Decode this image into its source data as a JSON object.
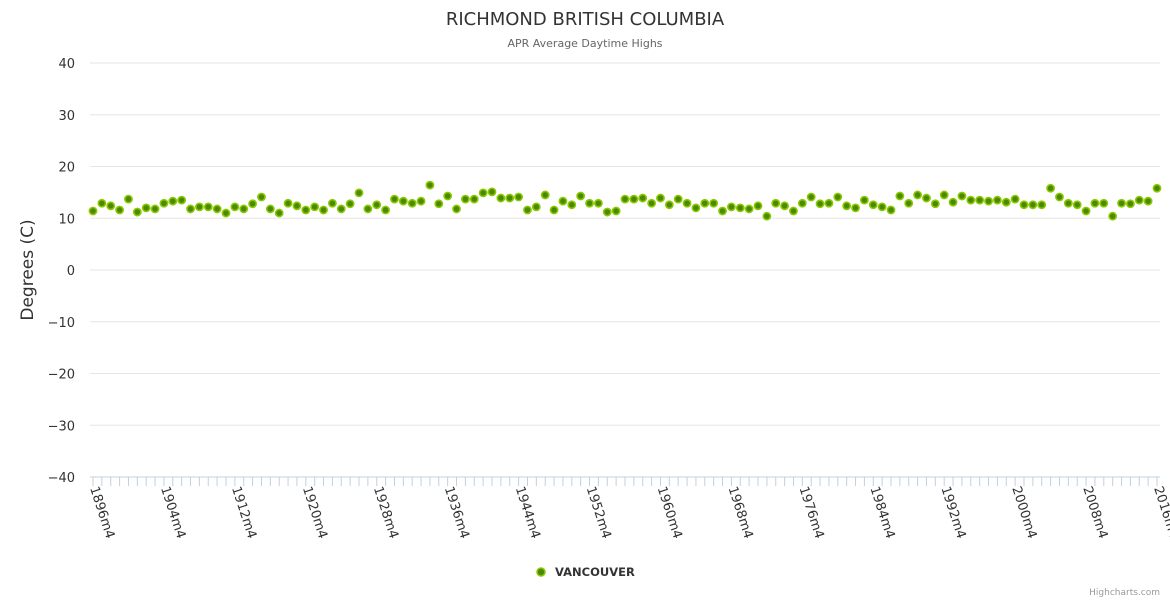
{
  "chart_data": {
    "type": "scatter",
    "title": "RICHMOND BRITISH COLUMBIA",
    "subtitle": "APR Average Daytime Highs",
    "ylabel": "Degrees (C)",
    "xlabel": "",
    "ylim": [
      -40,
      40
    ],
    "yticks": [
      40,
      30,
      20,
      10,
      0,
      -10,
      -20,
      -30,
      -40
    ],
    "xlim": [
      1896,
      2016
    ],
    "xtick_labels": [
      "1896m4",
      "1904m4",
      "1912m4",
      "1920m4",
      "1928m4",
      "1936m4",
      "1944m4",
      "1952m4",
      "1960m4",
      "1968m4",
      "1976m4",
      "1984m4",
      "1992m4",
      "2000m4",
      "2008m4",
      "2016m4"
    ],
    "grid": true,
    "legend_placement": "bottom-center",
    "series": [
      {
        "name": "VANCOUVER",
        "color": "#6aa800",
        "x_start": 1896,
        "values": [
          11.4,
          12.9,
          12.4,
          11.6,
          13.7,
          11.2,
          12.0,
          11.8,
          12.9,
          13.3,
          13.5,
          11.8,
          12.2,
          12.2,
          11.8,
          11.0,
          12.2,
          11.8,
          12.8,
          14.1,
          11.8,
          11.0,
          12.9,
          12.4,
          11.6,
          12.2,
          11.6,
          12.9,
          11.8,
          12.8,
          14.9,
          11.8,
          12.6,
          11.6,
          13.7,
          13.3,
          12.9,
          13.3,
          16.4,
          12.8,
          14.3,
          11.8,
          13.7,
          13.7,
          14.9,
          15.1,
          13.9,
          13.9,
          14.1,
          11.6,
          12.2,
          14.5,
          11.6,
          13.3,
          12.6,
          14.3,
          12.9,
          12.9,
          11.2,
          11.4,
          13.7,
          13.7,
          13.9,
          12.9,
          13.9,
          12.6,
          13.7,
          12.9,
          12.0,
          12.9,
          12.9,
          11.4,
          12.2,
          12.0,
          11.8,
          12.4,
          10.4,
          12.9,
          12.4,
          11.4,
          12.9,
          14.1,
          12.8,
          12.9,
          14.1,
          12.4,
          12.0,
          13.5,
          12.6,
          12.2,
          11.6,
          14.3,
          12.9,
          14.5,
          13.9,
          12.8,
          14.5,
          13.1,
          14.3,
          13.5,
          13.5,
          13.3,
          13.5,
          13.1,
          13.7,
          12.6,
          12.6,
          12.6,
          15.8,
          14.1,
          12.9,
          12.6,
          11.4,
          12.9,
          12.9,
          10.4,
          12.9,
          12.8,
          13.5,
          13.3,
          15.8
        ]
      }
    ],
    "credits": "Highcharts.com"
  }
}
